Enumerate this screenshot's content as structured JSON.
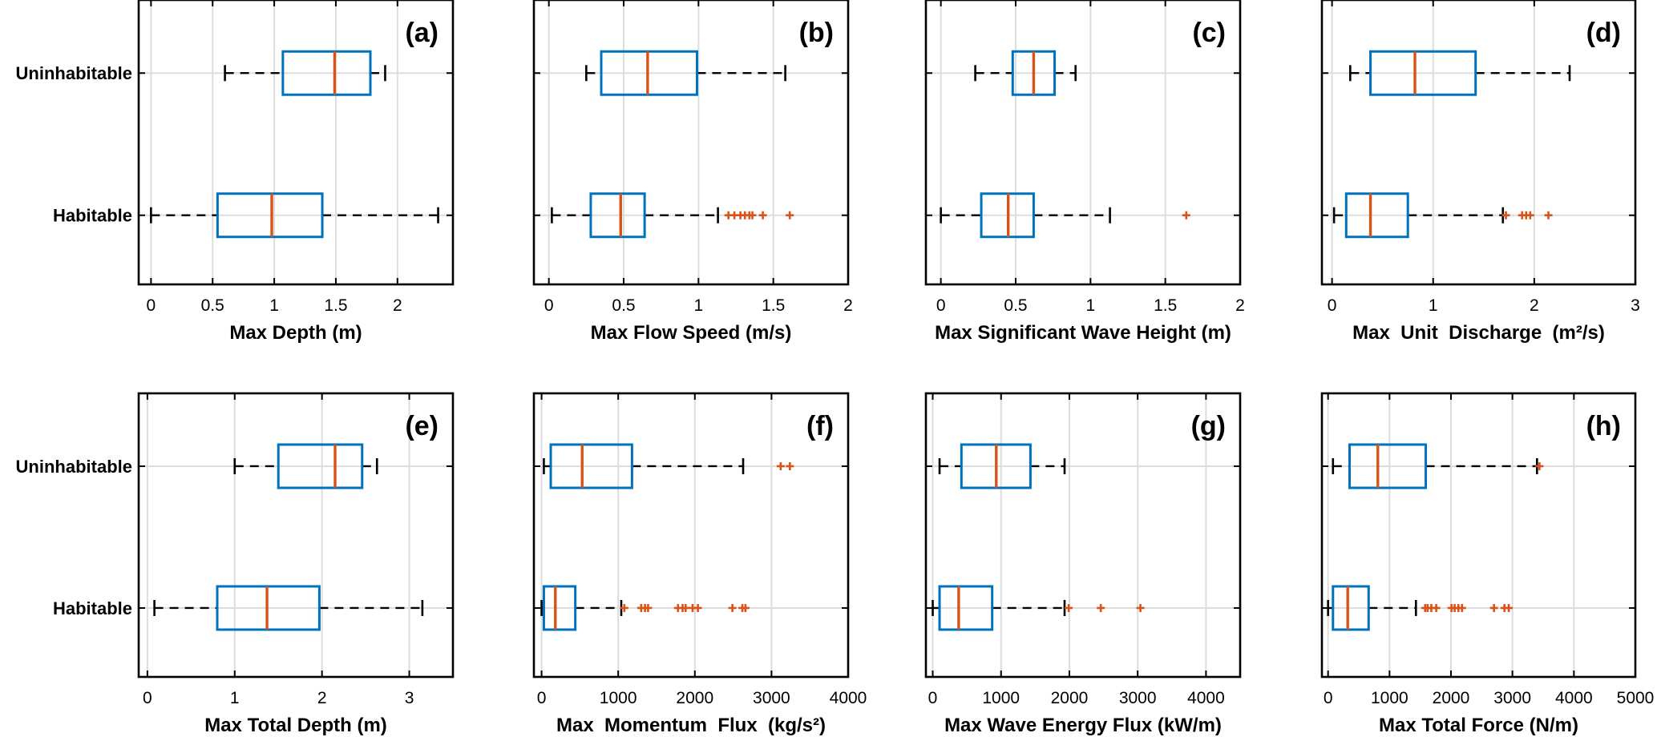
{
  "colors": {
    "box": "#0072BD",
    "median": "#D95319",
    "outlier": "#D95319",
    "whisker": "#000000",
    "grid": "#DDDDDD",
    "axis": "#000000"
  },
  "chart_data": [
    {
      "type": "boxplot",
      "panel": "(a)",
      "xlabel": "Max Depth (m)",
      "xlim": [
        -0.1,
        2.45
      ],
      "xticks": [
        0,
        0.5,
        1,
        1.5,
        2
      ],
      "xticklabels": [
        "0",
        "0.5",
        "1",
        "1.5",
        "2"
      ],
      "categories": [
        "Uninhabitable",
        "Habitable"
      ],
      "grid": true,
      "boxes": [
        {
          "category": "Uninhabitable",
          "whisker_low": 0.6,
          "q1": 1.07,
          "median": 1.49,
          "q3": 1.78,
          "whisker_high": 1.9,
          "outliers": []
        },
        {
          "category": "Habitable",
          "whisker_low": 0.0,
          "q1": 0.54,
          "median": 0.98,
          "q3": 1.39,
          "whisker_high": 2.33,
          "outliers": []
        }
      ]
    },
    {
      "type": "boxplot",
      "panel": "(b)",
      "xlabel": "Max Flow Speed (m/s)",
      "xlim": [
        -0.1,
        2
      ],
      "xticks": [
        0,
        0.5,
        1,
        1.5,
        2
      ],
      "xticklabels": [
        "0",
        "0.5",
        "1",
        "1.5",
        "2"
      ],
      "categories": [
        "Uninhabitable",
        "Habitable"
      ],
      "grid": true,
      "boxes": [
        {
          "category": "Uninhabitable",
          "whisker_low": 0.25,
          "q1": 0.35,
          "median": 0.66,
          "q3": 0.99,
          "whisker_high": 1.58,
          "outliers": []
        },
        {
          "category": "Habitable",
          "whisker_low": 0.02,
          "q1": 0.28,
          "median": 0.48,
          "q3": 0.64,
          "whisker_high": 1.13,
          "outliers": [
            1.2,
            1.24,
            1.28,
            1.31,
            1.34,
            1.36,
            1.43,
            1.61
          ]
        }
      ]
    },
    {
      "type": "boxplot",
      "panel": "(c)",
      "xlabel": "Max Significant Wave Height (m)",
      "xlim": [
        -0.1,
        2
      ],
      "xticks": [
        0,
        0.5,
        1,
        1.5,
        2
      ],
      "xticklabels": [
        "0",
        "0.5",
        "1",
        "1.5",
        "2"
      ],
      "categories": [
        "Uninhabitable",
        "Habitable"
      ],
      "grid": true,
      "boxes": [
        {
          "category": "Uninhabitable",
          "whisker_low": 0.23,
          "q1": 0.48,
          "median": 0.62,
          "q3": 0.76,
          "whisker_high": 0.9,
          "outliers": []
        },
        {
          "category": "Habitable",
          "whisker_low": 0.0,
          "q1": 0.27,
          "median": 0.45,
          "q3": 0.62,
          "whisker_high": 1.13,
          "outliers": [
            1.64
          ]
        }
      ]
    },
    {
      "type": "boxplot",
      "panel": "(d)",
      "xlabel": "Max  Unit  Discharge  (m²/s)",
      "xlim": [
        -0.1,
        3
      ],
      "xticks": [
        0,
        1,
        2,
        3
      ],
      "xticklabels": [
        "0",
        "1",
        "2",
        "3"
      ],
      "categories": [
        "Uninhabitable",
        "Habitable"
      ],
      "grid": true,
      "boxes": [
        {
          "category": "Uninhabitable",
          "whisker_low": 0.18,
          "q1": 0.38,
          "median": 0.82,
          "q3": 1.42,
          "whisker_high": 2.35,
          "outliers": []
        },
        {
          "category": "Habitable",
          "whisker_low": 0.02,
          "q1": 0.14,
          "median": 0.38,
          "q3": 0.75,
          "whisker_high": 1.69,
          "outliers": [
            1.72,
            1.88,
            1.92,
            1.96,
            2.14
          ]
        }
      ]
    },
    {
      "type": "boxplot",
      "panel": "(e)",
      "xlabel": "Max Total Depth (m)",
      "xlim": [
        -0.1,
        3.5
      ],
      "xticks": [
        0,
        1,
        2,
        3
      ],
      "xticklabels": [
        "0",
        "1",
        "2",
        "3"
      ],
      "categories": [
        "Uninhabitable",
        "Habitable"
      ],
      "grid": true,
      "boxes": [
        {
          "category": "Uninhabitable",
          "whisker_low": 1.0,
          "q1": 1.5,
          "median": 2.15,
          "q3": 2.46,
          "whisker_high": 2.63,
          "outliers": []
        },
        {
          "category": "Habitable",
          "whisker_low": 0.08,
          "q1": 0.8,
          "median": 1.37,
          "q3": 1.97,
          "whisker_high": 3.15,
          "outliers": []
        }
      ]
    },
    {
      "type": "boxplot",
      "panel": "(f)",
      "xlabel": "Max  Momentum  Flux  (kg/s²)",
      "xlim": [
        -100,
        4000
      ],
      "xticks": [
        0,
        1000,
        2000,
        3000,
        4000
      ],
      "xticklabels": [
        "0",
        "1000",
        "2000",
        "3000",
        "4000"
      ],
      "categories": [
        "Uninhabitable",
        "Habitable"
      ],
      "grid": true,
      "boxes": [
        {
          "category": "Uninhabitable",
          "whisker_low": 30,
          "q1": 120,
          "median": 530,
          "q3": 1180,
          "whisker_high": 2630,
          "outliers": [
            3120,
            3240
          ]
        },
        {
          "category": "Habitable",
          "whisker_low": 0,
          "q1": 30,
          "median": 180,
          "q3": 440,
          "whisker_high": 1040,
          "outliers": [
            1080,
            1300,
            1350,
            1390,
            1780,
            1840,
            1880,
            1970,
            2040,
            2490,
            2620,
            2660
          ]
        }
      ]
    },
    {
      "type": "boxplot",
      "panel": "(g)",
      "xlabel": "Max Wave Energy Flux (kW/m)",
      "xlim": [
        -100,
        4500
      ],
      "xticks": [
        0,
        1000,
        2000,
        3000,
        4000
      ],
      "xticklabels": [
        "0",
        "1000",
        "2000",
        "3000",
        "4000"
      ],
      "categories": [
        "Uninhabitable",
        "Habitable"
      ],
      "grid": true,
      "boxes": [
        {
          "category": "Uninhabitable",
          "whisker_low": 100,
          "q1": 420,
          "median": 930,
          "q3": 1430,
          "whisker_high": 1930,
          "outliers": []
        },
        {
          "category": "Habitable",
          "whisker_low": 0,
          "q1": 100,
          "median": 380,
          "q3": 870,
          "whisker_high": 1930,
          "outliers": [
            1990,
            2460,
            3040
          ]
        }
      ]
    },
    {
      "type": "boxplot",
      "panel": "(h)",
      "xlabel": "Max Total Force (N/m)",
      "xlim": [
        -100,
        5000
      ],
      "xticks": [
        0,
        1000,
        2000,
        3000,
        4000,
        5000
      ],
      "xticklabels": [
        "0",
        "1000",
        "2000",
        "3000",
        "4000",
        "5000"
      ],
      "categories": [
        "Uninhabitable",
        "Habitable"
      ],
      "grid": true,
      "boxes": [
        {
          "category": "Uninhabitable",
          "whisker_low": 80,
          "q1": 350,
          "median": 810,
          "q3": 1590,
          "whisker_high": 3400,
          "outliers": [
            3440
          ]
        },
        {
          "category": "Habitable",
          "whisker_low": 0,
          "q1": 80,
          "median": 320,
          "q3": 660,
          "whisker_high": 1430,
          "outliers": [
            1580,
            1620,
            1680,
            1760,
            2010,
            2060,
            2120,
            2180,
            2700,
            2870,
            2940
          ]
        }
      ]
    }
  ]
}
